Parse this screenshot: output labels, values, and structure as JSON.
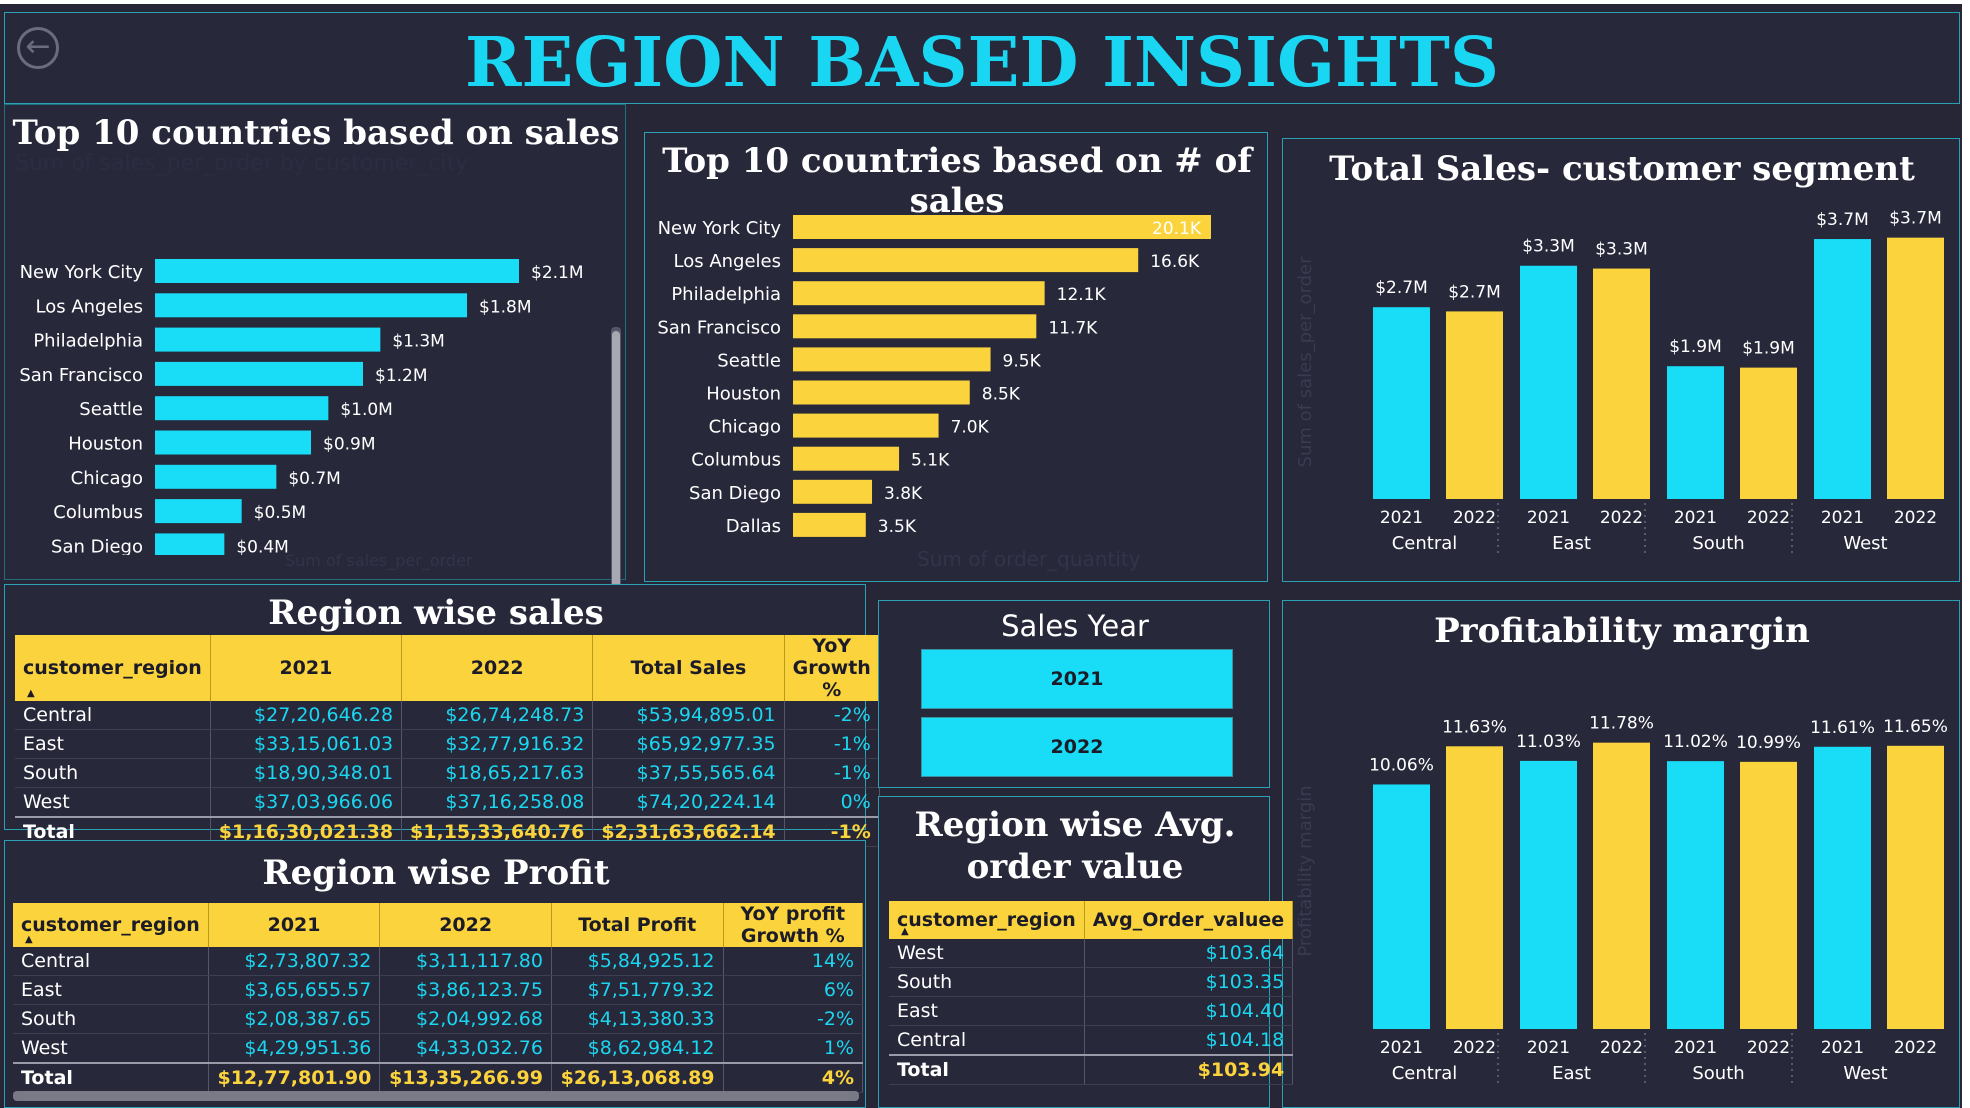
{
  "header": {
    "title": "REGION BASED INSIGHTS",
    "back_icon": "back-arrow-icon"
  },
  "colors": {
    "cyan": "#19dcf7",
    "yellow": "#fbd33c",
    "bg": "#262636",
    "panel": "#27283a"
  },
  "panels": {
    "top_sales_title": "Top 10 countries based on sales",
    "top_sales_subtitle": "Sum of sales_per_order by customer_city",
    "top_sales_xlabel": "Sum of sales_per_order",
    "top_count_title": "Top 10 countries based on # of sales",
    "top_count_xlabel": "Sum of order_quantity",
    "segment_title": "Total Sales- customer segment",
    "segment_ylabel": "Sum of sales_per_order",
    "profit_title": "Profitability margin",
    "profit_ylabel": "Profitability margin",
    "region_sales_title": "Region wise sales",
    "region_profit_title": "Region wise Profit",
    "slicer_title": "Sales Year",
    "aov_title_line1": "Region wise Avg.",
    "aov_title_line2": "order value"
  },
  "slicer": {
    "options": [
      "2021",
      "2022"
    ]
  },
  "chart_data": [
    {
      "type": "bar",
      "orientation": "horizontal",
      "title": "Top 10 countries based on sales",
      "categories": [
        "New York City",
        "Los Angeles",
        "Philadelphia",
        "San Francisco",
        "Seattle",
        "Houston",
        "Chicago",
        "Columbus",
        "San Diego"
      ],
      "values": [
        2.1,
        1.8,
        1.3,
        1.2,
        1.0,
        0.9,
        0.7,
        0.5,
        0.4
      ],
      "labels": [
        "$2.1M",
        "$1.8M",
        "$1.3M",
        "$1.2M",
        "$1.0M",
        "$0.9M",
        "$0.7M",
        "$0.5M",
        "$0.4M"
      ],
      "unit": "M",
      "xlabel": "Sum of sales_per_order",
      "color": "#19dcf7"
    },
    {
      "type": "bar",
      "orientation": "horizontal",
      "title": "Top 10 countries based on # of sales",
      "categories": [
        "New York City",
        "Los Angeles",
        "Philadelphia",
        "San Francisco",
        "Seattle",
        "Houston",
        "Chicago",
        "Columbus",
        "San Diego",
        "Dallas"
      ],
      "values": [
        20.1,
        16.6,
        12.1,
        11.7,
        9.5,
        8.5,
        7.0,
        5.1,
        3.8,
        3.5
      ],
      "labels": [
        "20.1K",
        "16.6K",
        "12.1K",
        "11.7K",
        "9.5K",
        "8.5K",
        "7.0K",
        "5.1K",
        "3.8K",
        "3.5K"
      ],
      "unit": "K",
      "xlabel": "Sum of order_quantity",
      "color": "#fbd33c"
    },
    {
      "type": "bar",
      "title": "Total Sales- customer segment",
      "groups": [
        "Central",
        "East",
        "South",
        "West"
      ],
      "categories": [
        "2021",
        "2022"
      ],
      "values": [
        [
          2.7,
          2.7
        ],
        [
          3.3,
          3.3
        ],
        [
          1.9,
          1.9
        ],
        [
          3.7,
          3.7
        ]
      ],
      "bar_heights": [
        [
          2.73,
          2.67
        ],
        [
          3.32,
          3.28
        ],
        [
          1.89,
          1.87
        ],
        [
          3.7,
          3.72
        ]
      ],
      "labels": [
        [
          "$2.7M",
          "$2.7M"
        ],
        [
          "$3.3M",
          "$3.3M"
        ],
        [
          "$1.9M",
          "$1.9M"
        ],
        [
          "$3.7M",
          "$3.7M"
        ]
      ],
      "ylabel": "Sum of sales_per_order",
      "ylim": [
        0,
        3.9
      ],
      "colors": [
        "#19dcf7",
        "#fbd33c"
      ]
    },
    {
      "type": "bar",
      "title": "Profitability margin",
      "groups": [
        "Central",
        "East",
        "South",
        "West"
      ],
      "categories": [
        "2021",
        "2022"
      ],
      "values": [
        [
          10.06,
          11.63
        ],
        [
          11.03,
          11.78
        ],
        [
          11.02,
          10.99
        ],
        [
          11.61,
          11.65
        ]
      ],
      "labels": [
        [
          "10.06%",
          "11.63%"
        ],
        [
          "11.03%",
          "11.78%"
        ],
        [
          "11.02%",
          "10.99%"
        ],
        [
          "11.61%",
          "11.65%"
        ]
      ],
      "ylabel": "Profitability margin",
      "ylim": [
        0,
        13
      ],
      "colors": [
        "#19dcf7",
        "#fbd33c"
      ]
    }
  ],
  "tables": {
    "sales": {
      "headers": [
        "customer_region",
        "2021",
        "2022",
        "Total Sales",
        "YoY Growth %"
      ],
      "rows": [
        [
          "Central",
          "$27,20,646.28",
          "$26,74,248.73",
          "$53,94,895.01",
          "-2%"
        ],
        [
          "East",
          "$33,15,061.03",
          "$32,77,916.32",
          "$65,92,977.35",
          "-1%"
        ],
        [
          "South",
          "$18,90,348.01",
          "$18,65,217.63",
          "$37,55,565.64",
          "-1%"
        ],
        [
          "West",
          "$37,03,966.06",
          "$37,16,258.08",
          "$74,20,224.14",
          "0%"
        ]
      ],
      "total": [
        "Total",
        "$1,16,30,021.38",
        "$1,15,33,640.76",
        "$2,31,63,662.14",
        "-1%"
      ]
    },
    "profit": {
      "headers": [
        "customer_region",
        "2021",
        "2022",
        "Total Profit",
        "YoY profit Growth %"
      ],
      "rows": [
        [
          "Central",
          "$2,73,807.32",
          "$3,11,117.80",
          "$5,84,925.12",
          "14%"
        ],
        [
          "East",
          "$3,65,655.57",
          "$3,86,123.75",
          "$7,51,779.32",
          "6%"
        ],
        [
          "South",
          "$2,08,387.65",
          "$2,04,992.68",
          "$4,13,380.33",
          "-2%"
        ],
        [
          "West",
          "$4,29,951.36",
          "$4,33,032.76",
          "$8,62,984.12",
          "1%"
        ]
      ],
      "total": [
        "Total",
        "$12,77,801.90",
        "$13,35,266.99",
        "$26,13,068.89",
        "4%"
      ]
    },
    "aov": {
      "headers": [
        "customer_region",
        "Avg_Order_valuee"
      ],
      "rows": [
        [
          "West",
          "$103.64"
        ],
        [
          "South",
          "$103.35"
        ],
        [
          "East",
          "$104.40"
        ],
        [
          "Central",
          "$104.18"
        ]
      ],
      "total": [
        "Total",
        "$103.94"
      ]
    }
  }
}
